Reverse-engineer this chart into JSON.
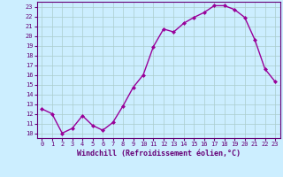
{
  "x": [
    0,
    1,
    2,
    3,
    4,
    5,
    6,
    7,
    8,
    9,
    10,
    11,
    12,
    13,
    14,
    15,
    16,
    17,
    18,
    19,
    20,
    21,
    22,
    23
  ],
  "y": [
    12.5,
    12.0,
    10.0,
    10.5,
    11.8,
    10.8,
    10.3,
    11.1,
    12.8,
    14.7,
    16.0,
    18.9,
    20.7,
    20.4,
    21.3,
    21.9,
    22.4,
    23.1,
    23.1,
    22.7,
    21.9,
    19.6,
    16.6,
    15.3
  ],
  "line_color": "#990099",
  "marker": "D",
  "marker_size": 2.0,
  "bg_color": "#cceeff",
  "grid_color": "#aacccc",
  "xlabel": "Windchill (Refroidissement éolien,°C)",
  "xlim": [
    -0.5,
    23.5
  ],
  "ylim": [
    9.5,
    23.5
  ],
  "yticks": [
    10,
    11,
    12,
    13,
    14,
    15,
    16,
    17,
    18,
    19,
    20,
    21,
    22,
    23
  ],
  "xticks": [
    0,
    1,
    2,
    3,
    4,
    5,
    6,
    7,
    8,
    9,
    10,
    11,
    12,
    13,
    14,
    15,
    16,
    17,
    18,
    19,
    20,
    21,
    22,
    23
  ],
  "tick_label_color": "#660077",
  "tick_label_size": 5.0,
  "xlabel_size": 6.0,
  "xlabel_color": "#660077",
  "spine_color": "#660077",
  "line_width": 1.0
}
